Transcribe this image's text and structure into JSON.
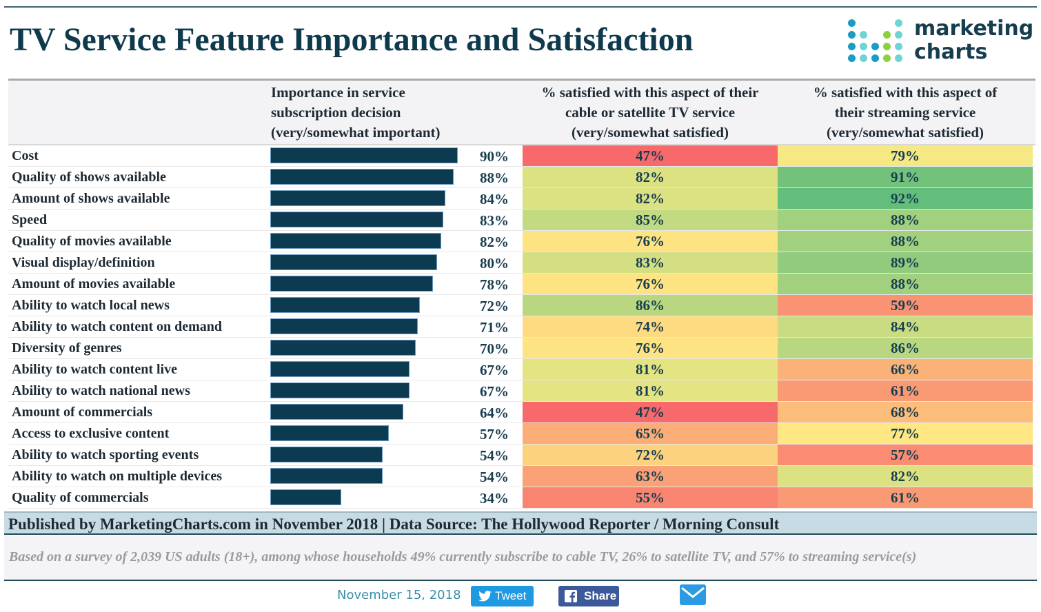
{
  "title": "TV Service Feature Importance and Satisfaction",
  "logo": {
    "line1": "marketing",
    "line2": "charts"
  },
  "chart_data": {
    "type": "table",
    "columns": [
      "",
      "Importance in service subscription decision (very/somewhat important)",
      "% satisfied with this aspect of their cable or satellite TV service (very/somewhat satisfied)",
      "% satisfied with this aspect of their streaming service (very/somewhat satisfied)"
    ],
    "column_lines": [
      [
        "Importance in service",
        "subscription decision",
        "(very/somewhat important)"
      ],
      [
        "% satisfied with this aspect of their",
        "cable or satellite TV service",
        "(very/somewhat satisfied)"
      ],
      [
        "% satisfied with this aspect of",
        "their streaming service",
        "(very/somewhat satisfied)"
      ]
    ],
    "importance_display": "bar",
    "satisfaction_display": "heatmap (red = low, yellow = mid, green = high)",
    "bar_color": "#0c3a50",
    "rows": [
      {
        "label": "Cost",
        "importance": 90,
        "cable": 47,
        "streaming": 79
      },
      {
        "label": "Quality of shows available",
        "importance": 88,
        "cable": 82,
        "streaming": 91
      },
      {
        "label": "Amount of shows available",
        "importance": 84,
        "cable": 82,
        "streaming": 92
      },
      {
        "label": "Speed",
        "importance": 83,
        "cable": 85,
        "streaming": 88
      },
      {
        "label": "Quality of movies available",
        "importance": 82,
        "cable": 76,
        "streaming": 88
      },
      {
        "label": "Visual display/definition",
        "importance": 80,
        "cable": 83,
        "streaming": 89
      },
      {
        "label": "Amount of movies available",
        "importance": 78,
        "cable": 76,
        "streaming": 88
      },
      {
        "label": "Ability to watch local news",
        "importance": 72,
        "cable": 86,
        "streaming": 59
      },
      {
        "label": "Ability to watch content on demand",
        "importance": 71,
        "cable": 74,
        "streaming": 84
      },
      {
        "label": "Diversity of genres",
        "importance": 70,
        "cable": 76,
        "streaming": 86
      },
      {
        "label": "Ability to watch content live",
        "importance": 67,
        "cable": 81,
        "streaming": 66
      },
      {
        "label": "Ability to watch national news",
        "importance": 67,
        "cable": 81,
        "streaming": 61
      },
      {
        "label": "Amount of commercials",
        "importance": 64,
        "cable": 47,
        "streaming": 68
      },
      {
        "label": "Access to exclusive content",
        "importance": 57,
        "cable": 65,
        "streaming": 77
      },
      {
        "label": "Ability to watch sporting events",
        "importance": 54,
        "cable": 72,
        "streaming": 57
      },
      {
        "label": "Ability to watch on multiple devices",
        "importance": 54,
        "cable": 63,
        "streaming": 82
      },
      {
        "label": "Quality of commercials",
        "importance": 34,
        "cable": 55,
        "streaming": 61
      }
    ]
  },
  "footer": {
    "published": "Published by MarketingCharts.com in November 2018 | Data Source: The Hollywood Reporter / Morning Consult",
    "note": "Based on a survey of 2,039 US adults (18+), among whose households 49% currently subscribe to cable TV, 26% to satellite TV, and 57% to streaming service(s)"
  },
  "share": {
    "date": "November 15, 2018",
    "tweet_label": "Tweet",
    "share_label": "Share",
    "icons": [
      "twitter-icon",
      "facebook-icon",
      "email-icon"
    ]
  }
}
